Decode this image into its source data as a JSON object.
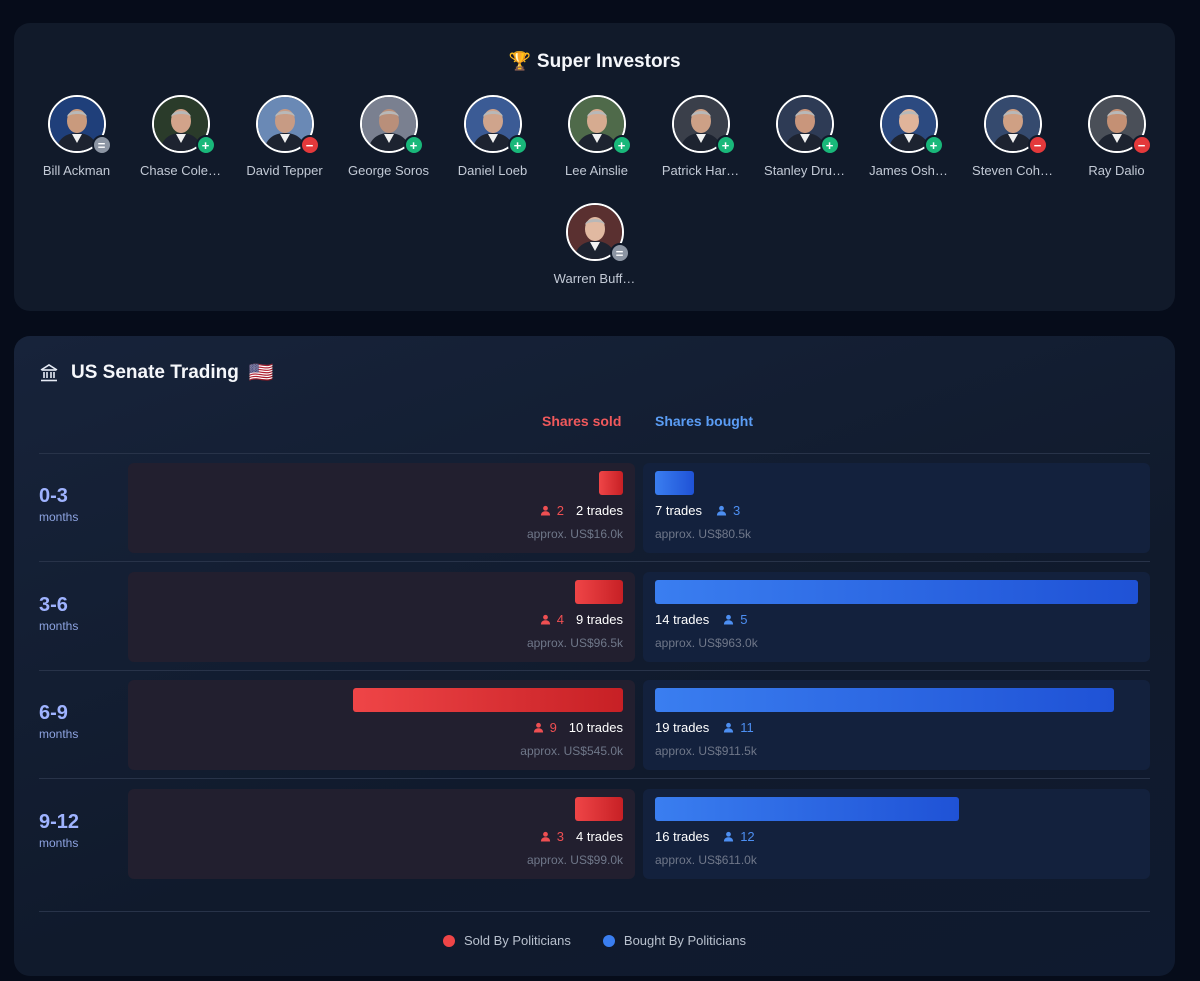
{
  "super_investors": {
    "title": "Super Investors",
    "trophy_icon": "🏆",
    "investors": [
      {
        "name": "Bill Ackman",
        "action": "hold",
        "badge": "="
      },
      {
        "name": "Chase Cole…",
        "action": "buy",
        "badge": "+"
      },
      {
        "name": "David Tepper",
        "action": "sell",
        "badge": "−"
      },
      {
        "name": "George Soros",
        "action": "buy",
        "badge": "+"
      },
      {
        "name": "Daniel Loeb",
        "action": "buy",
        "badge": "+"
      },
      {
        "name": "Lee Ainslie",
        "action": "buy",
        "badge": "+"
      },
      {
        "name": "Patrick Har…",
        "action": "buy",
        "badge": "+"
      },
      {
        "name": "Stanley Dru…",
        "action": "buy",
        "badge": "+"
      },
      {
        "name": "James Osh…",
        "action": "buy",
        "badge": "+"
      },
      {
        "name": "Steven Coh…",
        "action": "sell",
        "badge": "−"
      },
      {
        "name": "Ray Dalio",
        "action": "sell",
        "badge": "−"
      },
      {
        "name": "Warren Buff…",
        "action": "hold",
        "badge": "="
      }
    ]
  },
  "senate": {
    "title": "US Senate Trading",
    "flag": "🇺🇸",
    "header_sold": "Shares sold",
    "header_bought": "Shares bought",
    "rows": [
      {
        "period": "0-3",
        "unit": "months",
        "sold": {
          "politicians": "2",
          "trades": "2 trades",
          "approx": "approx. US$16.0k",
          "bar_fraction": 0.05
        },
        "bought": {
          "politicians": "3",
          "trades": "7 trades",
          "approx": "approx. US$80.5k",
          "bar_fraction": 0.08
        }
      },
      {
        "period": "3-6",
        "unit": "months",
        "sold": {
          "politicians": "4",
          "trades": "9 trades",
          "approx": "approx. US$96.5k",
          "bar_fraction": 0.1
        },
        "bought": {
          "politicians": "5",
          "trades": "14 trades",
          "approx": "approx. US$963.0k",
          "bar_fraction": 1.0
        }
      },
      {
        "period": "6-9",
        "unit": "months",
        "sold": {
          "politicians": "9",
          "trades": "10 trades",
          "approx": "approx. US$545.0k",
          "bar_fraction": 0.56
        },
        "bought": {
          "politicians": "11",
          "trades": "19 trades",
          "approx": "approx. US$911.5k",
          "bar_fraction": 0.95
        }
      },
      {
        "period": "9-12",
        "unit": "months",
        "sold": {
          "politicians": "3",
          "trades": "4 trades",
          "approx": "approx. US$99.0k",
          "bar_fraction": 0.1
        },
        "bought": {
          "politicians": "12",
          "trades": "16 trades",
          "approx": "approx. US$611.0k",
          "bar_fraction": 0.63
        }
      }
    ],
    "legend": {
      "sold": "Sold By Politicians",
      "bought": "Bought By Politicians"
    },
    "colors": {
      "sold": "#ef4547",
      "bought": "#3a7ef0"
    }
  }
}
